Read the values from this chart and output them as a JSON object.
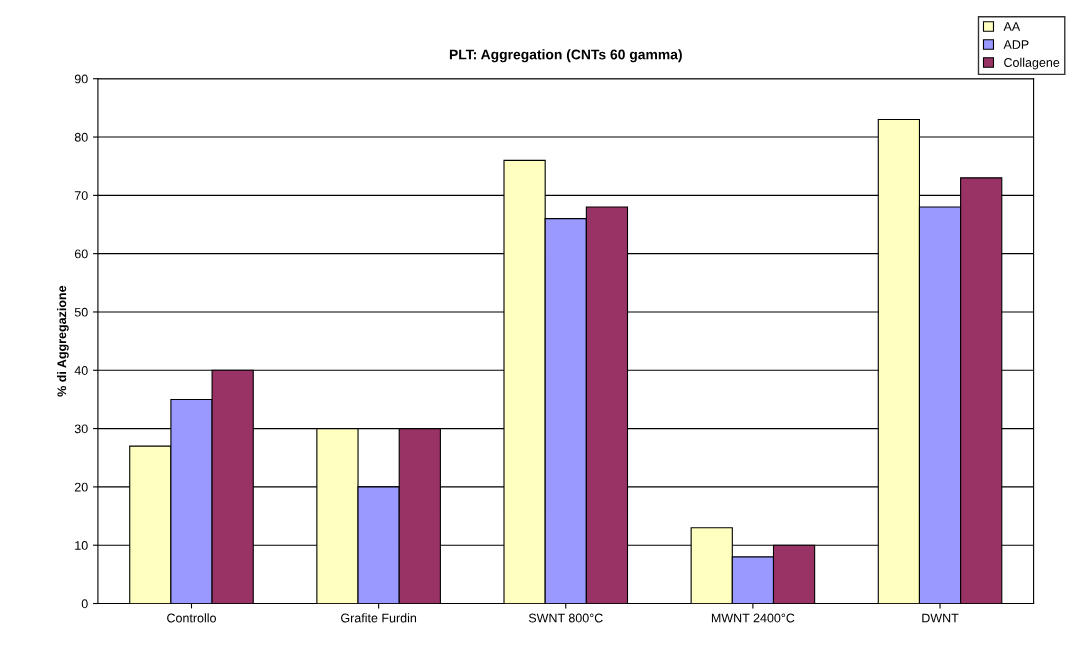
{
  "chart_data": {
    "type": "bar",
    "title": "PLT: Aggregation (CNTs 60 gamma)",
    "ylabel": "% di Aggregazione",
    "categories": [
      "Controllo",
      "Grafite Furdin",
      "SWNT 800°C",
      "MWNT 2400°C",
      "DWNT"
    ],
    "series": [
      {
        "name": "AA",
        "color": "#ffffc0",
        "values": [
          27,
          30,
          76,
          13,
          83
        ]
      },
      {
        "name": "ADP",
        "color": "#9999ff",
        "values": [
          35,
          20,
          66,
          8,
          68
        ]
      },
      {
        "name": "Collagene",
        "color": "#993366",
        "values": [
          40,
          30,
          68,
          10,
          73
        ]
      }
    ],
    "ylim": [
      0,
      90
    ],
    "yticks": [
      0,
      10,
      20,
      30,
      40,
      50,
      60,
      70,
      80,
      90
    ],
    "grid": "y",
    "legend": "top right"
  }
}
